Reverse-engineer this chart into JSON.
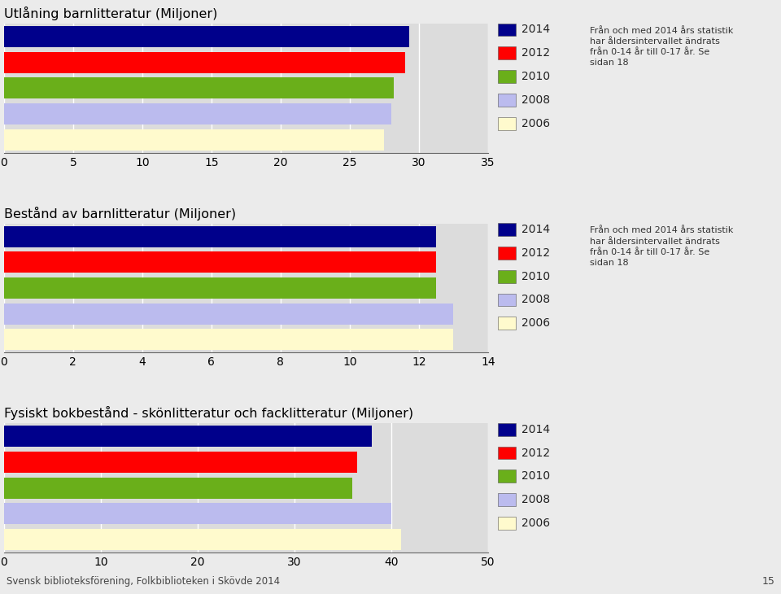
{
  "chart1": {
    "title": "Utlåning barnlitteratur (Miljoner)",
    "categories": [
      "2006",
      "2008",
      "2010",
      "2012",
      "2014"
    ],
    "values": [
      27.5,
      28.0,
      28.2,
      29.0,
      29.3
    ],
    "colors": [
      "#FFFACD",
      "#BBBBEE",
      "#6AAF1A",
      "#FF0000",
      "#00008B"
    ],
    "xlim": [
      0,
      35
    ],
    "xticks": [
      0,
      5,
      10,
      15,
      20,
      25,
      30,
      35
    ],
    "annotation": "Från och med 2014 års statistik\nhar åldersintervallet ändrats\nfrån 0-14 år till 0-17 år. Se\nsidan 18"
  },
  "chart2": {
    "title": "Bestånd av barnlitteratur (Miljoner)",
    "categories": [
      "2006",
      "2008",
      "2010",
      "2012",
      "2014"
    ],
    "values": [
      13.0,
      13.0,
      12.5,
      12.5,
      12.5
    ],
    "colors": [
      "#FFFACD",
      "#BBBBEE",
      "#6AAF1A",
      "#FF0000",
      "#00008B"
    ],
    "xlim": [
      0,
      14
    ],
    "xticks": [
      0,
      2,
      4,
      6,
      8,
      10,
      12,
      14
    ],
    "annotation": "Från och med 2014 års statistik\nhar åldersintervallet ändrats\nfrån 0-14 år till 0-17 år. Se\nsidan 18"
  },
  "chart3": {
    "title": "Fysiskt bokbestånd - skönlitteratur och facklitteratur (Miljoner)",
    "categories": [
      "2006",
      "2008",
      "2010",
      "2012",
      "2014"
    ],
    "values": [
      41.0,
      40.0,
      36.0,
      36.5,
      38.0
    ],
    "colors": [
      "#FFFACD",
      "#BBBBEE",
      "#6AAF1A",
      "#FF0000",
      "#00008B"
    ],
    "xlim": [
      0,
      50
    ],
    "xticks": [
      0,
      10,
      20,
      30,
      40,
      50
    ]
  },
  "legend_labels": [
    "2014",
    "2012",
    "2010",
    "2008",
    "2006"
  ],
  "legend_colors": [
    "#00008B",
    "#FF0000",
    "#6AAF1A",
    "#BBBBEE",
    "#FFFACD"
  ],
  "footer": "Svensk biblioteksförening, Folkbiblioteken i Skövde 2014",
  "page_number": "15",
  "fig_bg": "#EBEBEB",
  "plot_bg": "#DCDCDC"
}
